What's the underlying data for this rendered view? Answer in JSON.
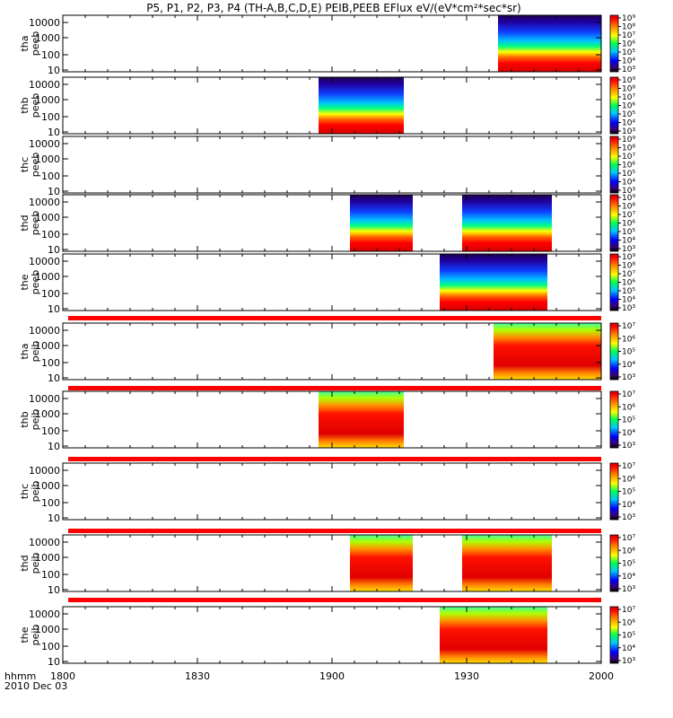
{
  "chart_data": {
    "type": "heatmap",
    "title": "P5, P1, P2, P3, P4 (TH-A,B,C,D,E) PEIB,PEEB EFlux eV/(eV*cm²*sec*sr)",
    "x_axis": {
      "range": [
        "18:00",
        "20:00"
      ],
      "tick_labels": [
        "1800",
        "1830",
        "1900",
        "1930",
        "2000"
      ],
      "unit_label": "hhmm",
      "date_label": "2010 Dec 03"
    },
    "y_axis": {
      "scale": "log",
      "tick_labels": [
        "10000",
        "1000",
        "100",
        "10"
      ]
    },
    "panels": [
      {
        "probe": "tha",
        "instrument": "peeb",
        "data_intervals": [
          [
            "19:37",
            "20:00"
          ]
        ],
        "colorbar_range": [
          "10^3",
          "10^9"
        ],
        "colorbar_ticks": [
          "10⁹",
          "10⁸",
          "10⁷",
          "10⁶",
          "10⁵",
          "10⁴",
          "10³"
        ]
      },
      {
        "probe": "thb",
        "instrument": "peeb",
        "data_intervals": [
          [
            "18:57",
            "19:16"
          ]
        ],
        "colorbar_range": [
          "10^3",
          "10^9"
        ],
        "colorbar_ticks": [
          "10⁹",
          "10⁸",
          "10⁷",
          "10⁶",
          "10⁵",
          "10⁴",
          "10³"
        ]
      },
      {
        "probe": "thc",
        "instrument": "peeb",
        "data_intervals": [],
        "colorbar_range": [
          "10^3",
          "10^9"
        ],
        "colorbar_ticks": [
          "10⁹",
          "10⁸",
          "10⁷",
          "10⁶",
          "10⁵",
          "10⁴",
          "10³"
        ]
      },
      {
        "probe": "thd",
        "instrument": "peeb",
        "data_intervals": [
          [
            "19:04",
            "19:18"
          ],
          [
            "19:29",
            "19:49"
          ]
        ],
        "colorbar_range": [
          "10^3",
          "10^9"
        ],
        "colorbar_ticks": [
          "10⁹",
          "10⁸",
          "10⁷",
          "10⁶",
          "10⁵",
          "10⁴",
          "10³"
        ]
      },
      {
        "probe": "the",
        "instrument": "peeb",
        "data_intervals": [
          [
            "19:24",
            "19:48"
          ]
        ],
        "colorbar_range": [
          "10^3",
          "10^9"
        ],
        "colorbar_ticks": [
          "10⁹",
          "10⁸",
          "10⁷",
          "10⁶",
          "10⁵",
          "10⁴",
          "10³"
        ]
      },
      {
        "probe": "tha",
        "instrument": "peib",
        "data_intervals": [
          [
            "19:36",
            "20:00"
          ]
        ],
        "colorbar_range": [
          "10^3",
          "10^7"
        ],
        "colorbar_ticks": [
          "10⁷",
          "10⁶",
          "10⁵",
          "10⁴",
          "10³"
        ]
      },
      {
        "probe": "thb",
        "instrument": "peib",
        "data_intervals": [
          [
            "18:57",
            "19:16"
          ]
        ],
        "colorbar_range": [
          "10^3",
          "10^7"
        ],
        "colorbar_ticks": [
          "10⁷",
          "10⁶",
          "10⁵",
          "10⁴",
          "10³"
        ]
      },
      {
        "probe": "thc",
        "instrument": "peib",
        "data_intervals": [],
        "colorbar_range": [
          "10^3",
          "10^7"
        ],
        "colorbar_ticks": [
          "10⁷",
          "10⁶",
          "10⁵",
          "10⁴",
          "10³"
        ]
      },
      {
        "probe": "thd",
        "instrument": "peib",
        "data_intervals": [
          [
            "19:04",
            "19:18"
          ],
          [
            "19:29",
            "19:49"
          ]
        ],
        "colorbar_range": [
          "10^3",
          "10^7"
        ],
        "colorbar_ticks": [
          "10⁷",
          "10⁶",
          "10⁵",
          "10⁴",
          "10³"
        ]
      },
      {
        "probe": "the",
        "instrument": "peib",
        "data_intervals": [
          [
            "19:24",
            "19:48"
          ]
        ],
        "colorbar_range": [
          "10^3",
          "10^7"
        ],
        "colorbar_ticks": [
          "10⁷",
          "10⁶",
          "10⁵",
          "10⁴",
          "10³"
        ]
      }
    ],
    "grid": false,
    "legend": "per-panel color bars on the right"
  }
}
